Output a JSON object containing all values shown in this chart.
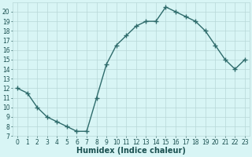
{
  "x": [
    0,
    1,
    2,
    3,
    4,
    5,
    6,
    7,
    8,
    9,
    10,
    11,
    12,
    13,
    14,
    15,
    16,
    17,
    18,
    19,
    20,
    21,
    22,
    23
  ],
  "y": [
    12,
    11.5,
    10,
    9,
    8.5,
    8,
    7.5,
    7.5,
    11,
    14.5,
    16.5,
    17.5,
    18.5,
    19,
    19,
    20.5,
    20,
    19.5,
    19,
    18,
    16.5,
    15,
    14,
    15
  ],
  "line_color": "#2e6b6b",
  "marker": "+",
  "marker_size": 4,
  "bg_color": "#d8f5f5",
  "grid_color": "#b8d8d8",
  "xlabel": "Humidex (Indice chaleur)",
  "xlabel_color": "#1a5050",
  "xlabel_fontsize": 7,
  "ylim": [
    7,
    21
  ],
  "xlim": [
    -0.5,
    23.5
  ],
  "yticks": [
    7,
    8,
    9,
    10,
    11,
    12,
    13,
    14,
    15,
    16,
    17,
    18,
    19,
    20
  ],
  "xticks": [
    0,
    1,
    2,
    3,
    4,
    5,
    6,
    7,
    8,
    9,
    10,
    11,
    12,
    13,
    14,
    15,
    16,
    17,
    18,
    19,
    20,
    21,
    22,
    23
  ],
  "tick_fontsize": 5.5,
  "tick_color": "#1a5050",
  "linewidth": 1.0,
  "marker_color": "#2e6b6b"
}
